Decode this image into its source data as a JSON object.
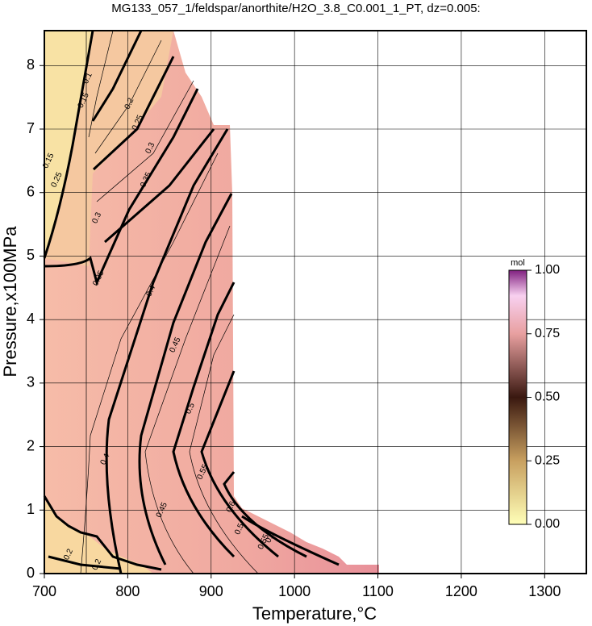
{
  "chart_data": {
    "type": "contour",
    "title": "MG133_057_1/feldspar/anorthite/H2O_3.8_C0.001_1_PT, dz=0.005:",
    "x_label": "Temperature,°C",
    "y_label": "Pressure,x100MPa",
    "xlim": [
      700,
      1350
    ],
    "xticks": [
      700,
      800,
      900,
      1000,
      1100,
      1200,
      1300
    ],
    "ylim": [
      0,
      8.55
    ],
    "yticks": [
      0,
      1,
      2,
      3,
      4,
      5,
      6,
      7,
      8
    ],
    "grid": true,
    "contour_labels": [
      {
        "value": 0.1,
        "x": 752,
        "y": 7.8
      },
      {
        "value": 0.15,
        "x": 747,
        "y": 7.45
      },
      {
        "value": 0.2,
        "x": 802,
        "y": 7.4
      },
      {
        "value": 0.25,
        "x": 812,
        "y": 7.1
      },
      {
        "value": 0.3,
        "x": 827,
        "y": 6.7
      },
      {
        "value": 0.35,
        "x": 822,
        "y": 6.2
      },
      {
        "value": 0.15,
        "x": 705,
        "y": 6.5
      },
      {
        "value": 0.25,
        "x": 715,
        "y": 6.2
      },
      {
        "value": 0.3,
        "x": 763,
        "y": 5.6
      },
      {
        "value": 0.35,
        "x": 765,
        "y": 4.65
      },
      {
        "value": 0.4,
        "x": 828,
        "y": 4.45
      },
      {
        "value": 0.45,
        "x": 857,
        "y": 3.6
      },
      {
        "value": 0.5,
        "x": 875,
        "y": 2.6
      },
      {
        "value": 0.55,
        "x": 890,
        "y": 1.6
      },
      {
        "value": 0.4,
        "x": 773,
        "y": 1.8
      },
      {
        "value": 0.45,
        "x": 841,
        "y": 1.0
      },
      {
        "value": 0.6,
        "x": 924,
        "y": 1.05
      },
      {
        "value": 0.5,
        "x": 934,
        "y": 0.7
      },
      {
        "value": 0.6,
        "x": 971,
        "y": 0.57
      },
      {
        "value": 0.55,
        "x": 963,
        "y": 0.5
      },
      {
        "value": 0.2,
        "x": 729,
        "y": 0.3
      },
      {
        "value": 0.2,
        "x": 763,
        "y": 0.14
      }
    ],
    "colorbar": {
      "label": "mol",
      "lim": [
        0,
        1
      ],
      "ticks": [
        {
          "value": 0,
          "label": "0.00"
        },
        {
          "value": 0.25,
          "label": "0.25"
        },
        {
          "value": 0.5,
          "label": "0.50"
        },
        {
          "value": 0.75,
          "label": "0.75"
        },
        {
          "value": 1,
          "label": "1.00"
        }
      ]
    }
  }
}
